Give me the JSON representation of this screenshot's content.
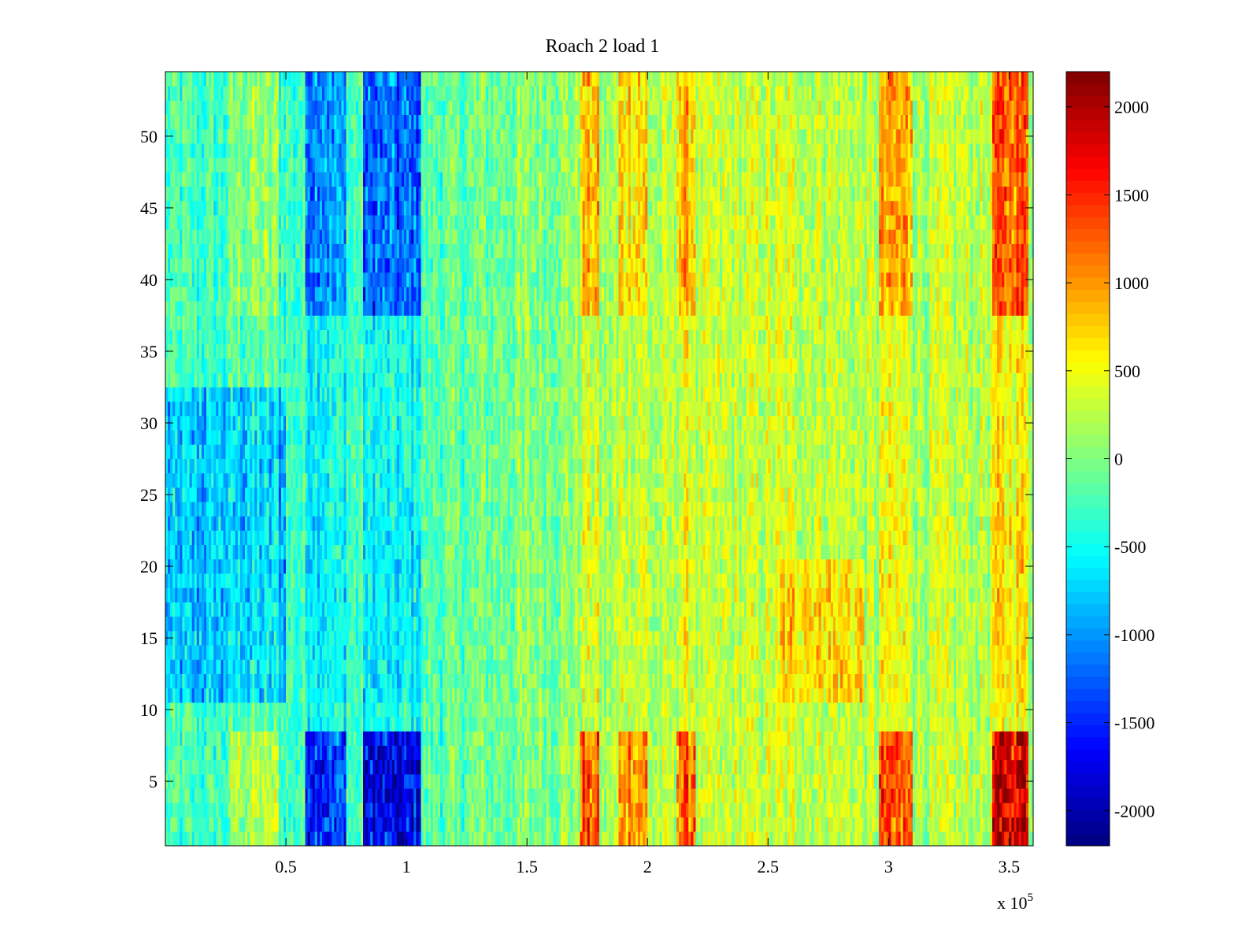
{
  "chart_data": {
    "type": "heatmap",
    "title": "Roach 2 load 1",
    "xlabel": "",
    "ylabel": "",
    "x_multiplier_label": {
      "base": "x 10",
      "exponent": "5"
    },
    "xlim": [
      0,
      360000
    ],
    "ylim": [
      0.5,
      54.5
    ],
    "x_ticks": [
      {
        "value": 50000,
        "label": "0.5"
      },
      {
        "value": 100000,
        "label": "1"
      },
      {
        "value": 150000,
        "label": "1.5"
      },
      {
        "value": 200000,
        "label": "2"
      },
      {
        "value": 250000,
        "label": "2.5"
      },
      {
        "value": 300000,
        "label": "3"
      },
      {
        "value": 350000,
        "label": "3.5"
      }
    ],
    "y_ticks": [
      {
        "value": 5,
        "label": "5"
      },
      {
        "value": 10,
        "label": "10"
      },
      {
        "value": 15,
        "label": "15"
      },
      {
        "value": 20,
        "label": "20"
      },
      {
        "value": 25,
        "label": "25"
      },
      {
        "value": 30,
        "label": "30"
      },
      {
        "value": 35,
        "label": "35"
      },
      {
        "value": 40,
        "label": "40"
      },
      {
        "value": 45,
        "label": "45"
      },
      {
        "value": 50,
        "label": "50"
      }
    ],
    "colormap": "jet",
    "clim": [
      -2200,
      2200
    ],
    "colorbar_ticks": [
      {
        "value": 2000,
        "label": "2000"
      },
      {
        "value": 1500,
        "label": "1500"
      },
      {
        "value": 1000,
        "label": "1000"
      },
      {
        "value": 500,
        "label": "500"
      },
      {
        "value": 0,
        "label": "0"
      },
      {
        "value": -500,
        "label": "-500"
      },
      {
        "value": -1000,
        "label": "-1000"
      },
      {
        "value": -1500,
        "label": "-1500"
      },
      {
        "value": -2000,
        "label": "-2000"
      }
    ],
    "rows": 54,
    "columns": 360,
    "column_width": 1000,
    "field_estimate": {
      "base_trend": [
        {
          "x": 0,
          "value": -300
        },
        {
          "x": 100000,
          "value": -250
        },
        {
          "x": 170000,
          "value": 100
        },
        {
          "x": 260000,
          "value": 350
        },
        {
          "x": 300000,
          "value": 200
        },
        {
          "x": 360000,
          "value": 300
        }
      ],
      "column_bands": [
        {
          "x_range": [
            27000,
            47000
          ],
          "value": 400
        },
        {
          "x_range": [
            58000,
            75000
          ],
          "value": -950
        },
        {
          "x_range": [
            82000,
            106000
          ],
          "value": -1250
        },
        {
          "x_range": [
            172000,
            180000
          ],
          "value": 900
        },
        {
          "x_range": [
            188000,
            200000
          ],
          "value": 700
        },
        {
          "x_range": [
            212000,
            220000
          ],
          "value": 800
        },
        {
          "x_range": [
            296000,
            310000
          ],
          "value": 900
        },
        {
          "x_range": [
            343000,
            358000
          ],
          "value": 1300
        }
      ],
      "row_groups": [
        {
          "rows": [
            1,
            8
          ],
          "band_gain": 1.4
        },
        {
          "rows": [
            9,
            10
          ],
          "band_gain": 0.2
        },
        {
          "rows": [
            11,
            24
          ],
          "band_gain": 0.35
        },
        {
          "rows": [
            25,
            37
          ],
          "band_gain": 0.25
        },
        {
          "rows": [
            38,
            54
          ],
          "band_gain": 0.9
        }
      ],
      "regional_offsets": [
        {
          "x_range": [
            0,
            50000
          ],
          "rows": [
            11,
            32
          ],
          "value": -650
        },
        {
          "x_range": [
            255000,
            290000
          ],
          "rows": [
            11,
            20
          ],
          "value": 500
        }
      ],
      "noise_amplitude": 380
    }
  }
}
